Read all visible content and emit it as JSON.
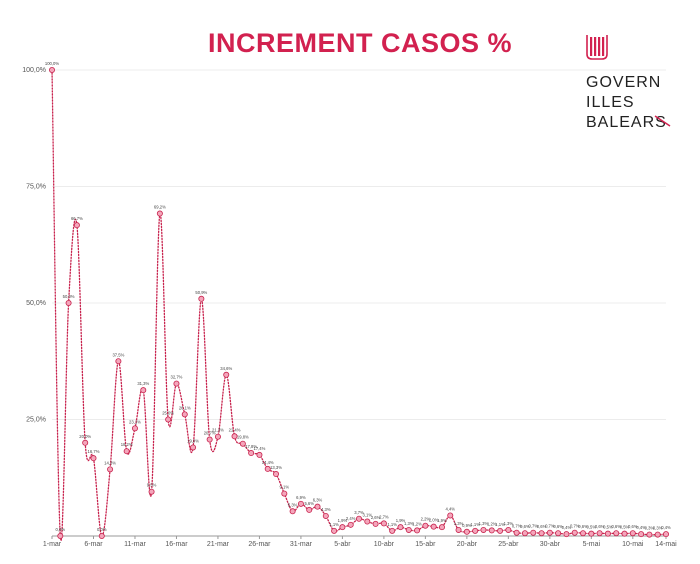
{
  "title": "INCREMENT CASOS %",
  "logo": {
    "lines": [
      "GOVERN",
      "ILLES",
      "BALEARS"
    ],
    "brand_color": "#d2214f"
  },
  "chart_data": {
    "type": "line",
    "title": "INCREMENT CASOS %",
    "xlabel": "",
    "ylabel": "",
    "ylim": [
      0,
      100
    ],
    "y_ticks": [
      "25,0%",
      "50,0%",
      "75,0%",
      "100,0%"
    ],
    "y_tick_values": [
      25,
      50,
      75,
      100
    ],
    "x_tick_labels": [
      "1-mar",
      "6-mar",
      "11-mar",
      "16-mar",
      "21-mar",
      "26-mar",
      "31-mar",
      "5-abr",
      "10-abr",
      "15-abr",
      "20-abr",
      "25-abr",
      "30-abr",
      "5-mai",
      "10-mai",
      "14-mai"
    ],
    "x_tick_index": [
      0,
      5,
      10,
      15,
      20,
      25,
      30,
      35,
      40,
      45,
      50,
      55,
      60,
      65,
      70,
      74
    ],
    "line_color": "#c8234e",
    "marker_color": "#f4a6bb",
    "grid": true,
    "series": [
      {
        "values": [
          100.0,
          0.0,
          50.0,
          66.7,
          20.0,
          16.7,
          0.0,
          14.3,
          37.5,
          18.2,
          23.1,
          31.3,
          9.5,
          69.2,
          25.0,
          32.7,
          26.1,
          19.0,
          50.9,
          20.7,
          21.3,
          34.6,
          21.4,
          19.8,
          17.8,
          17.4,
          14.4,
          13.3,
          9.1,
          5.3,
          6.9,
          5.6,
          6.3,
          4.3,
          1.1,
          1.9,
          2.4,
          3.7,
          3.1,
          2.6,
          2.7,
          1.1,
          1.9,
          1.3,
          1.2,
          2.2,
          2.0,
          1.9,
          4.4,
          1.3,
          0.9,
          1.1,
          1.3,
          1.2,
          1.1,
          1.3,
          0.7,
          0.6,
          0.7,
          0.6,
          0.7,
          0.6,
          0.4,
          0.7,
          0.6,
          0.5,
          0.6,
          0.5,
          0.6,
          0.5,
          0.6,
          0.4,
          0.3,
          0.3,
          0.4
        ],
        "labels": [
          "100,0%",
          "0,0%",
          "50,0%",
          "66,7%",
          "20,0%",
          "16,7%",
          "0,0%",
          "14,3%",
          "37,5%",
          "18,2%",
          "23,1%",
          "31,3%",
          "9,5%",
          "69,2%",
          "25,0%",
          "32,7%",
          "26,1%",
          "19,0%",
          "50,9%",
          "20,7%",
          "21,3%",
          "34,6%",
          "21,4%",
          "19,8%",
          "17,8%",
          "17,4%",
          "14,4%",
          "13,3%",
          "9,1%",
          "5,3%",
          "6,9%",
          "5,6%",
          "6,3%",
          "4,3%",
          "1,1%",
          "1,9%",
          "2,4%",
          "3,7%",
          "3,1%",
          "2,6%",
          "2,7%",
          "1,1%",
          "1,9%",
          "1,3%",
          "1,2%",
          "2,2%",
          "2,0%",
          "1,9%",
          "4,4%",
          "1,3%",
          "0,9%",
          "1,1%",
          "1,3%",
          "1,2%",
          "1,1%",
          "1,3%",
          "0,7%",
          "0,6%",
          "0,7%",
          "0,6%",
          "0,7%",
          "0,6%",
          "0,4%",
          "0,7%",
          "0,6%",
          "0,5%",
          "0,6%",
          "0,5%",
          "0,6%",
          "0,5%",
          "0,6%",
          "0,4%",
          "0,3%",
          "0,3%",
          "0,4%"
        ]
      }
    ]
  }
}
